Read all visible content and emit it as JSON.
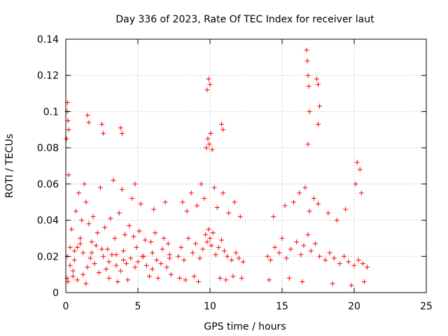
{
  "chart_data": {
    "type": "scatter",
    "title": "Day 336 of 2023, Rate Of TEC Index for receiver laut",
    "xlabel": "GPS time / hours",
    "ylabel": "ROTI / TECUs",
    "xlim": [
      0,
      25
    ],
    "ylim": [
      0,
      0.14
    ],
    "xticks": [
      0,
      5,
      10,
      15,
      20,
      25
    ],
    "yticks": [
      0,
      0.02,
      0.04,
      0.06,
      0.08,
      0.1,
      0.12,
      0.14
    ],
    "xtick_labels": [
      "0",
      "5",
      "10",
      "15",
      "20",
      "25"
    ],
    "ytick_labels": [
      "0",
      "0.02",
      "0.04",
      "0.06",
      "0.08",
      "0.1",
      "0.12",
      "0.14"
    ],
    "grid": true,
    "marker": "plus",
    "color": "#ff0000",
    "series": [
      {
        "x": [
          0.05,
          0.1,
          0.12,
          0.15,
          0.2,
          0.1,
          0.3,
          0.5,
          0.6,
          0.8,
          1.0,
          1.2,
          1.5,
          1.7,
          1.8,
          2.0,
          2.3,
          2.5,
          2.6,
          2.8,
          3.0,
          3.2,
          3.5,
          3.8,
          4.0,
          4.2,
          4.5,
          4.8,
          5.0,
          5.3,
          5.6,
          6.0,
          6.3,
          6.6,
          7.0,
          7.2,
          0.4,
          0.7,
          1.1,
          1.4,
          1.6,
          1.9,
          2.2,
          2.7,
          3.1,
          3.4,
          3.7,
          4.1,
          4.4,
          4.7,
          5.1,
          5.5,
          5.9,
          6.2,
          6.8,
          7.1,
          0.2,
          0.9,
          1.3,
          2.4,
          3.3,
          3.9,
          4.6,
          5.2,
          6.1,
          6.9,
          1.5,
          1.6,
          2.5,
          2.6,
          3.8,
          3.9,
          4.8,
          0.1,
          0.15,
          0.5,
          0.8,
          1.2,
          1.4,
          3.0,
          3.6,
          4.3,
          5.8,
          6.4,
          7.3,
          0.3,
          0.6,
          1.0,
          1.8,
          2.1,
          2.9,
          3.5,
          4.0,
          4.9,
          5.4,
          6.0,
          6.7,
          7.2
        ],
        "y": [
          0.085,
          0.1,
          0.105,
          0.095,
          0.09,
          0.02,
          0.015,
          0.012,
          0.018,
          0.025,
          0.03,
          0.022,
          0.014,
          0.019,
          0.028,
          0.016,
          0.011,
          0.024,
          0.02,
          0.013,
          0.017,
          0.021,
          0.015,
          0.012,
          0.018,
          0.016,
          0.019,
          0.014,
          0.017,
          0.02,
          0.015,
          0.013,
          0.018,
          0.016,
          0.014,
          0.019,
          0.035,
          0.045,
          0.04,
          0.05,
          0.038,
          0.042,
          0.033,
          0.036,
          0.041,
          0.03,
          0.044,
          0.032,
          0.037,
          0.031,
          0.034,
          0.029,
          0.028,
          0.033,
          0.03,
          0.027,
          0.065,
          0.055,
          0.06,
          0.058,
          0.062,
          0.057,
          0.052,
          0.049,
          0.046,
          0.05,
          0.098,
          0.094,
          0.093,
          0.088,
          0.091,
          0.088,
          0.06,
          0.008,
          0.006,
          0.009,
          0.007,
          0.01,
          0.005,
          0.008,
          0.006,
          0.007,
          0.009,
          0.008,
          0.01,
          0.025,
          0.023,
          0.027,
          0.022,
          0.026,
          0.024,
          0.021,
          0.023,
          0.025,
          0.02,
          0.022,
          0.024,
          0.021
        ]
      },
      {
        "x": [
          7.8,
          8.0,
          8.2,
          8.5,
          8.8,
          9.0,
          9.3,
          9.5,
          9.7,
          9.8,
          9.9,
          10.0,
          10.1,
          10.2,
          10.4,
          10.6,
          10.8,
          11.0,
          11.2,
          11.5,
          11.8,
          12.0,
          12.3,
          8.1,
          8.4,
          8.7,
          9.1,
          9.4,
          9.6,
          10.3,
          10.5,
          10.9,
          11.3,
          11.7,
          12.1,
          9.75,
          9.85,
          9.95,
          10.05,
          10.15,
          9.8,
          9.9,
          10.0,
          10.8,
          10.9,
          7.9,
          8.3,
          8.9,
          9.2,
          10.7,
          11.1,
          11.6,
          12.2
        ],
        "y": [
          0.02,
          0.025,
          0.018,
          0.03,
          0.022,
          0.027,
          0.019,
          0.024,
          0.032,
          0.028,
          0.035,
          0.03,
          0.026,
          0.033,
          0.021,
          0.025,
          0.029,
          0.023,
          0.02,
          0.018,
          0.022,
          0.019,
          0.017,
          0.05,
          0.045,
          0.055,
          0.048,
          0.06,
          0.052,
          0.058,
          0.047,
          0.055,
          0.044,
          0.05,
          0.042,
          0.08,
          0.085,
          0.082,
          0.088,
          0.079,
          0.112,
          0.118,
          0.115,
          0.093,
          0.09,
          0.008,
          0.007,
          0.009,
          0.006,
          0.008,
          0.007,
          0.009,
          0.008
        ]
      },
      {
        "x": [
          14.0,
          14.2,
          14.5,
          14.8,
          15.0,
          15.3,
          15.6,
          16.0,
          16.3,
          16.5,
          16.8,
          17.0,
          17.3,
          17.6,
          18.0,
          18.3,
          18.6,
          19.0,
          19.3,
          19.6,
          20.0,
          20.3,
          20.6,
          20.9,
          14.4,
          15.2,
          15.8,
          16.2,
          16.6,
          16.9,
          17.2,
          17.5,
          18.2,
          18.8,
          19.4,
          20.1,
          20.5,
          16.7,
          16.75,
          16.8,
          16.85,
          16.9,
          17.4,
          17.5,
          17.6,
          16.8,
          17.5,
          20.2,
          20.4,
          14.1,
          15.5,
          16.4,
          18.5,
          19.8,
          20.7
        ],
        "y": [
          0.02,
          0.018,
          0.025,
          0.022,
          0.03,
          0.019,
          0.024,
          0.028,
          0.021,
          0.026,
          0.032,
          0.023,
          0.027,
          0.02,
          0.018,
          0.022,
          0.019,
          0.016,
          0.02,
          0.017,
          0.015,
          0.018,
          0.016,
          0.014,
          0.042,
          0.048,
          0.05,
          0.055,
          0.058,
          0.045,
          0.052,
          0.049,
          0.044,
          0.04,
          0.046,
          0.06,
          0.055,
          0.134,
          0.128,
          0.12,
          0.114,
          0.1,
          0.118,
          0.115,
          0.103,
          0.082,
          0.093,
          0.072,
          0.068,
          0.007,
          0.008,
          0.006,
          0.005,
          0.004,
          0.006
        ]
      }
    ]
  }
}
